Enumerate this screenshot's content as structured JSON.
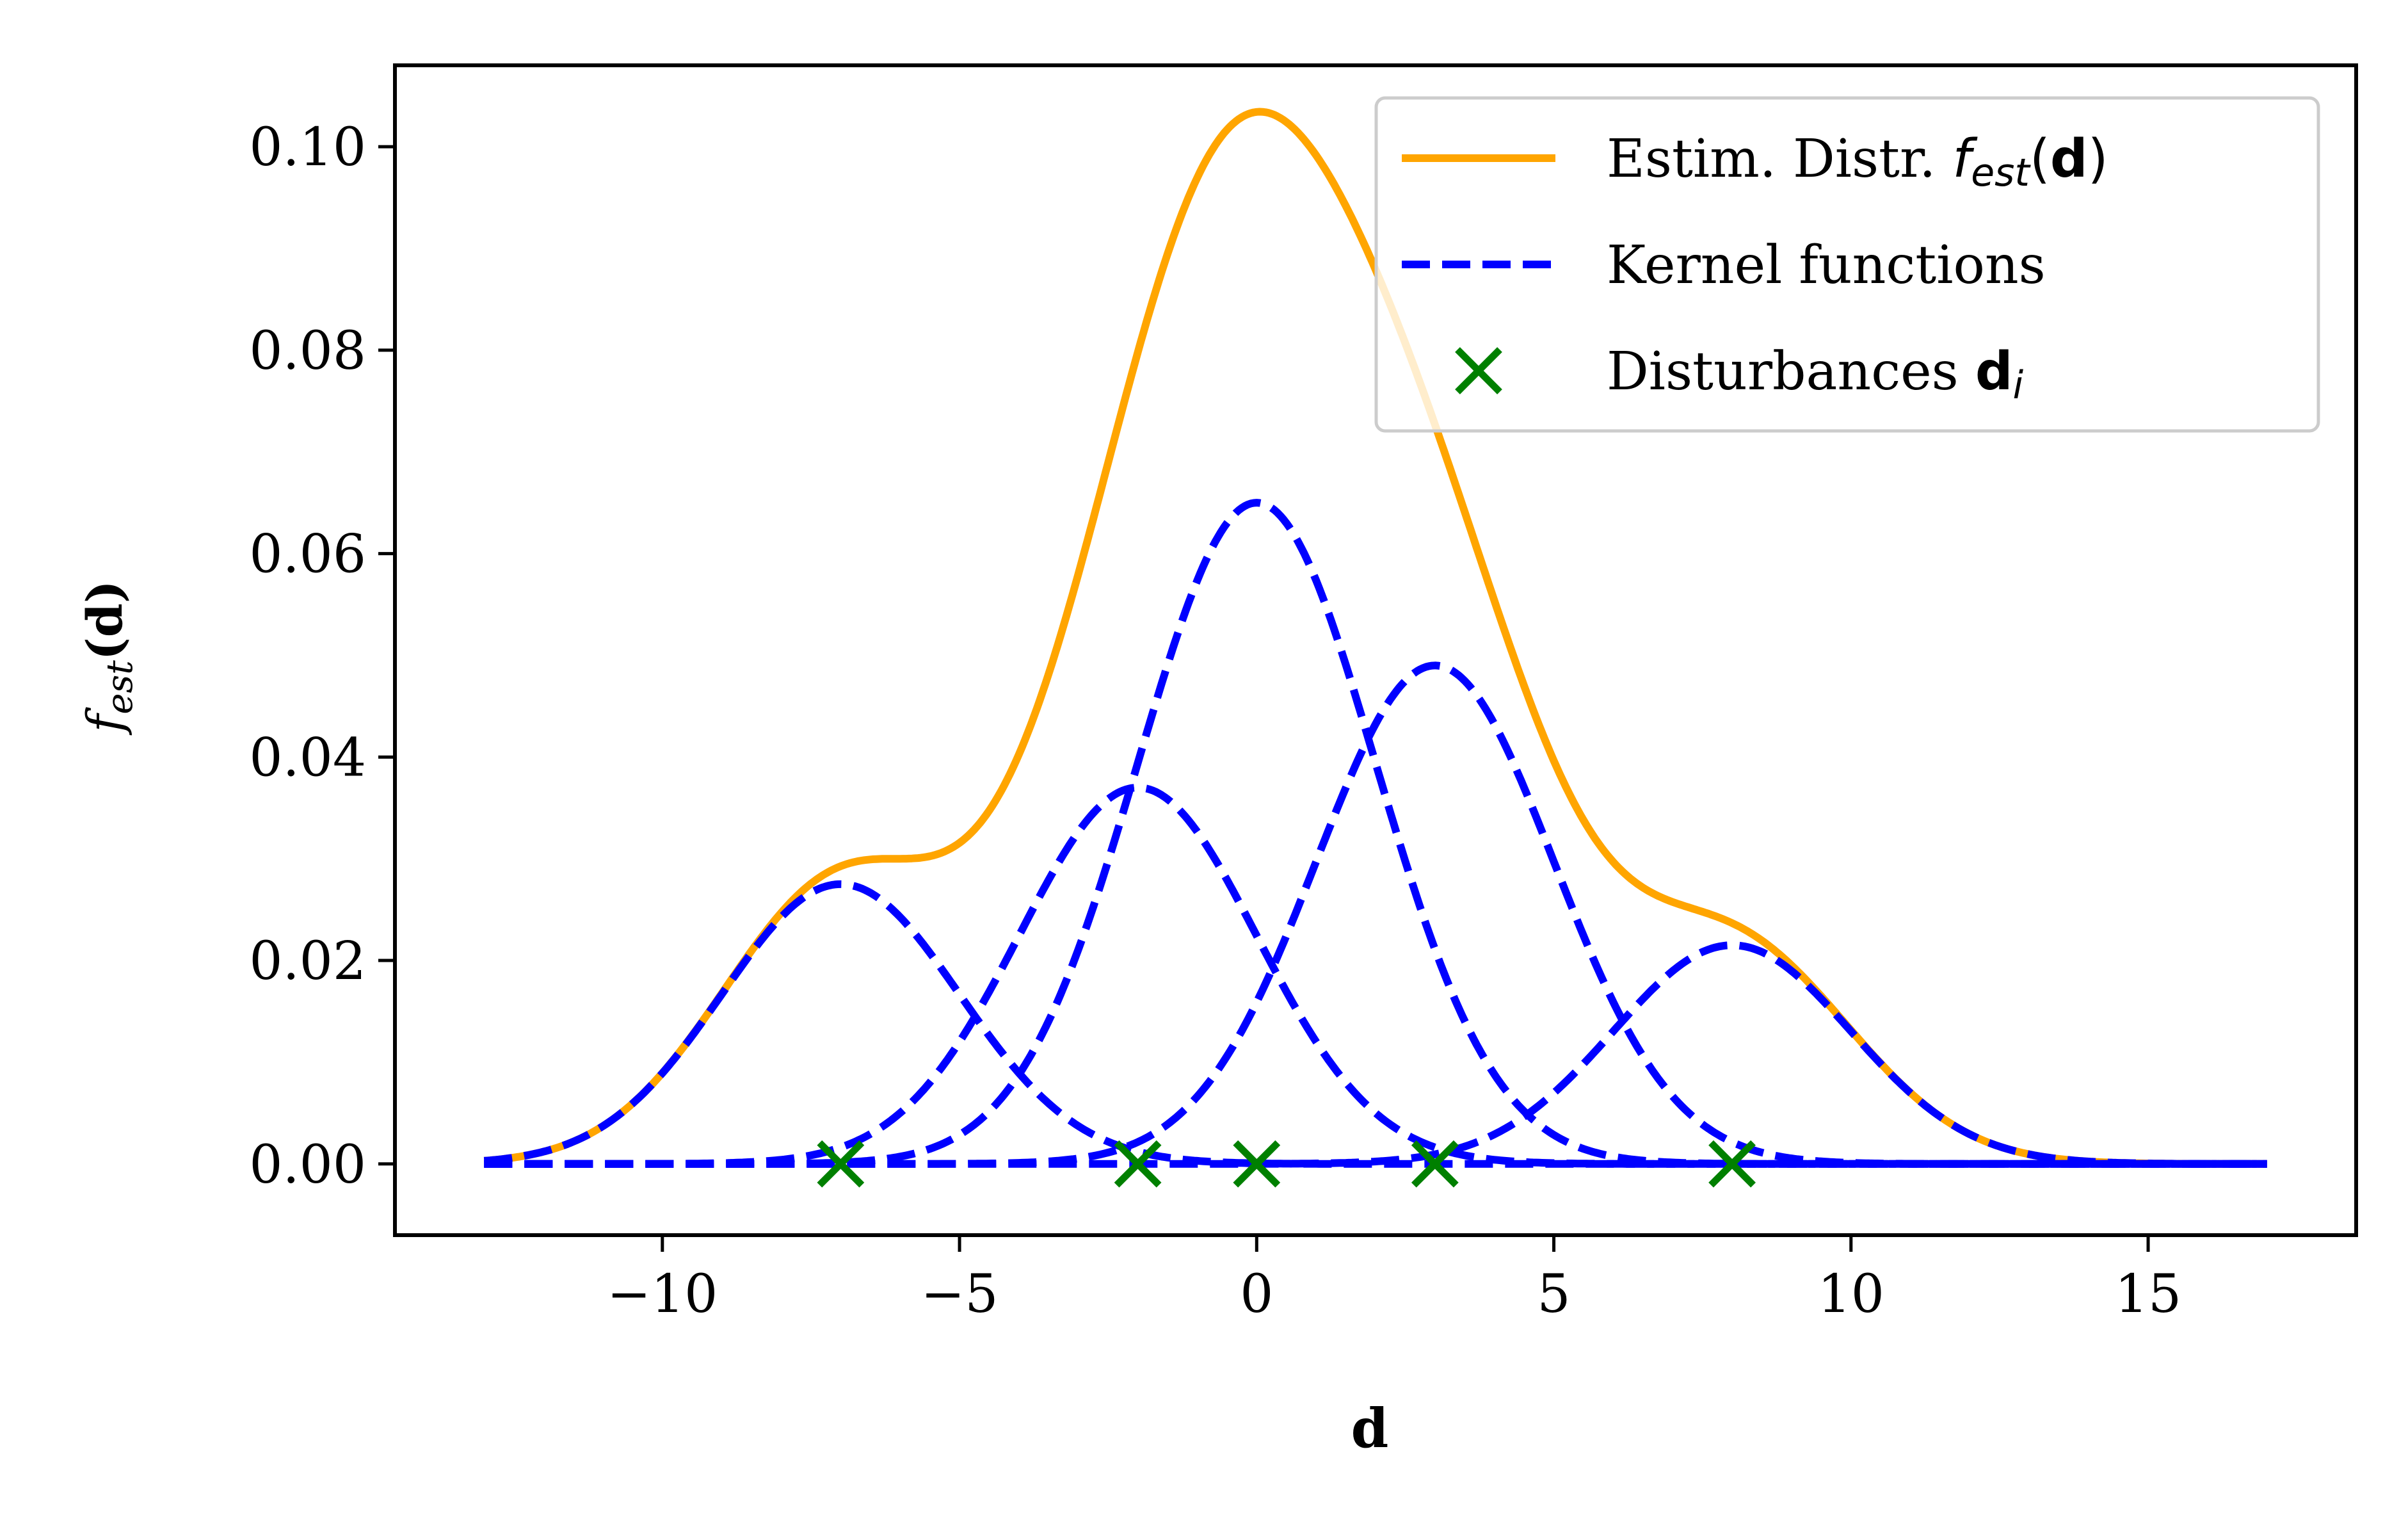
{
  "chart_data": {
    "type": "line",
    "xlabel": "d",
    "ylabel": {
      "f": "f",
      "sub": "est",
      "arg": "(d)"
    },
    "xlim": [
      -14.5,
      18.5
    ],
    "ylim": [
      -0.007,
      0.108
    ],
    "xticks": [
      -10,
      -5,
      0,
      5,
      10,
      15
    ],
    "xtick_labels": [
      "−10",
      "−5",
      "0",
      "5",
      "10",
      "15"
    ],
    "yticks": [
      0.0,
      0.02,
      0.04,
      0.06,
      0.08,
      0.1
    ],
    "ytick_labels": [
      "0.00",
      "0.02",
      "0.04",
      "0.06",
      "0.08",
      "0.10"
    ],
    "x_range": [
      -13,
      17
    ],
    "disturbances": [
      -7,
      -2,
      0,
      3,
      8
    ],
    "kernels": [
      {
        "center": -7,
        "peak": 0.0275,
        "sigma": 2.0
      },
      {
        "center": -2,
        "peak": 0.037,
        "sigma": 2.0
      },
      {
        "center": 0,
        "peak": 0.065,
        "sigma": 2.0
      },
      {
        "center": 3,
        "peak": 0.049,
        "sigma": 2.0
      },
      {
        "center": 8,
        "peak": 0.0215,
        "sigma": 2.0
      }
    ],
    "legend_position": "top-right",
    "legend": [
      {
        "kind": "line",
        "label": "Estim. Distr. ",
        "math": "f",
        "sub": "est",
        "tail": "(",
        "bold": "d",
        "close": ")"
      },
      {
        "kind": "dashed",
        "label": "Kernel functions"
      },
      {
        "kind": "marker",
        "label": "Disturbances ",
        "bold": "d",
        "sub": "i"
      }
    ],
    "colors": {
      "estimate": "#FFA500",
      "kernel": "#0000FF",
      "marker": "#008000"
    }
  }
}
